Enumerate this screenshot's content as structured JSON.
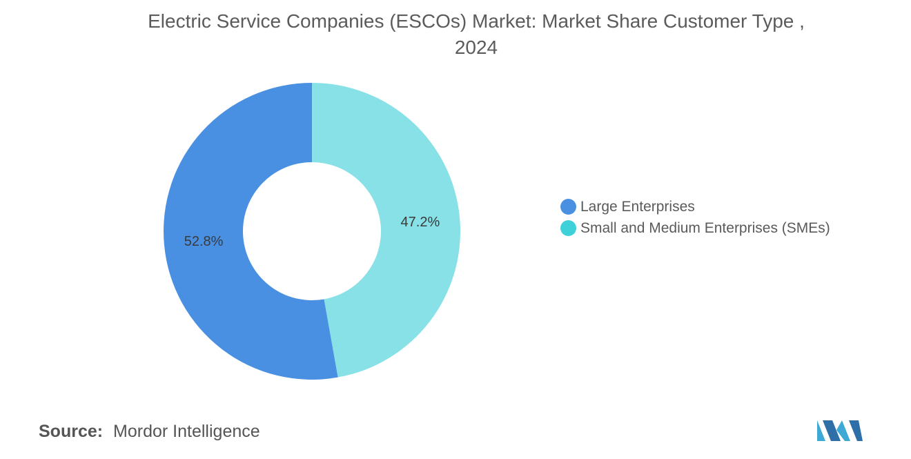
{
  "title_line1": "Electric Service Companies (ESCOs) Market: Market Share Customer Type ,",
  "title_line2": "2024",
  "chart_data": {
    "type": "pie",
    "donut": true,
    "title": "Electric Service Companies (ESCOs) Market: Market Share Customer Type , 2024",
    "categories": [
      "Large Enterprises",
      "Small and Medium Enterprises (SMEs)"
    ],
    "values": [
      52.8,
      47.2
    ],
    "value_labels": [
      "52.8%",
      "47.2%"
    ],
    "colors": [
      "#4a90e2",
      "#87e1e6"
    ],
    "legend_colors": [
      "#4a90e2",
      "#3fd1d9"
    ],
    "legend_position": "right"
  },
  "source": {
    "label": "Source:",
    "value": "Mordor Intelligence"
  },
  "logo_colors": [
    "#3fa9d6",
    "#2d6fa6"
  ]
}
